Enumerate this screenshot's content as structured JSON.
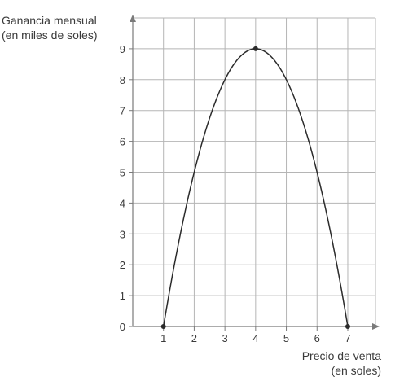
{
  "chart_data": {
    "type": "line",
    "ylabel_lines": [
      "Ganancia mensual",
      "(en miles de soles)"
    ],
    "xlabel_lines": [
      "Precio de venta",
      "(en soles)"
    ],
    "xticks": [
      "1",
      "2",
      "3",
      "4",
      "5",
      "6",
      "7"
    ],
    "yticks": [
      "0",
      "1",
      "2",
      "3",
      "4",
      "5",
      "6",
      "7",
      "8",
      "9"
    ],
    "xlim": [
      0,
      8
    ],
    "ylim": [
      0,
      9.6
    ],
    "grid": true,
    "curve": {
      "description_formula": "y = -(x-1)(x-7)",
      "x_range": [
        1,
        7
      ]
    },
    "points": [
      {
        "x": 1,
        "y": 0
      },
      {
        "x": 4,
        "y": 9
      },
      {
        "x": 7,
        "y": 0
      }
    ],
    "colors": {
      "grid": "#b5b5b5",
      "axis": "#7a7a7a",
      "curve": "#2b2b2b",
      "text": "#3a3a3a"
    }
  }
}
